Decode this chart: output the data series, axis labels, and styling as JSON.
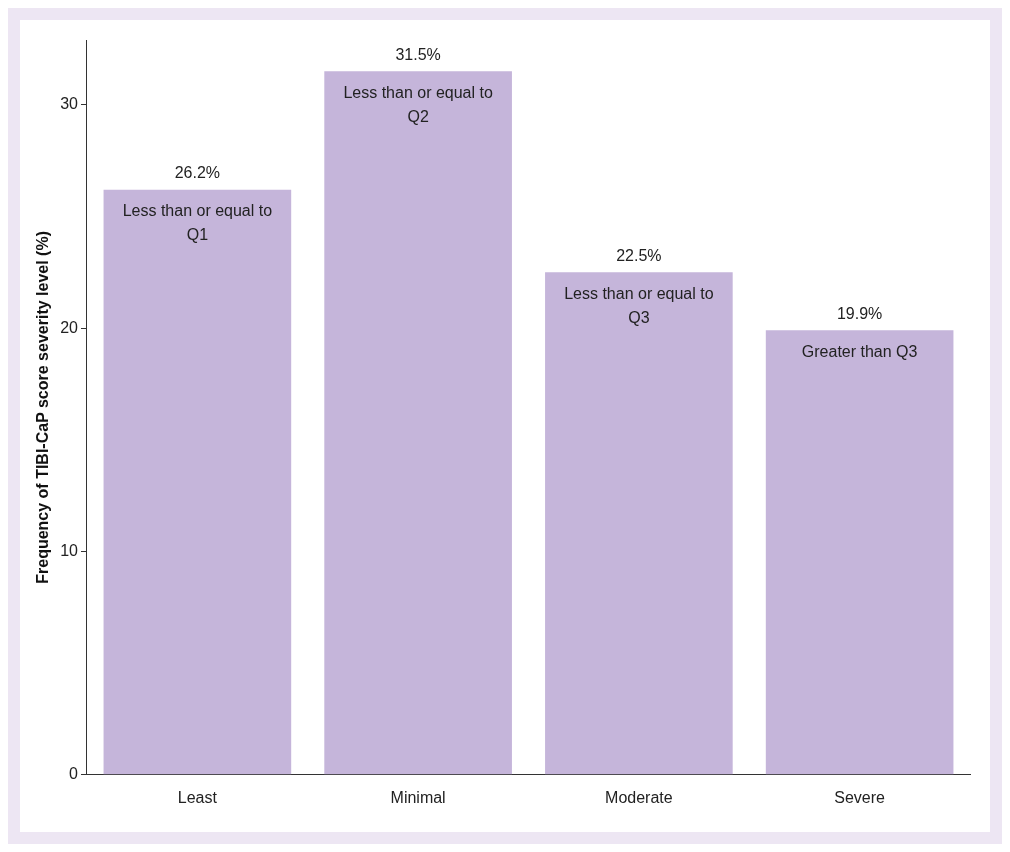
{
  "chart_data": {
    "type": "bar",
    "ylabel": "Frequency of TIBI-CaP score severity level (%)",
    "categories": [
      "Least",
      "Minimal",
      "Moderate",
      "Severe"
    ],
    "values": [
      26.2,
      31.5,
      22.5,
      19.9
    ],
    "value_labels": [
      "26.2%",
      "31.5%",
      "22.5%",
      "19.9%"
    ],
    "color": "#c5b5da",
    "ylim": [
      0,
      32.9
    ],
    "yticks": [
      0,
      10,
      20,
      30
    ],
    "grid": false,
    "legend": false,
    "annotations": [
      {
        "text": "Less than or equal to Q1",
        "x": "Least",
        "y": 26.2
      },
      {
        "text": "Less than or equal to Q2",
        "x": "Minimal",
        "y": 31.5
      },
      {
        "text": "Less than or equal to Q3",
        "x": "Moderate",
        "y": 22.5
      },
      {
        "text": "Greater than Q3",
        "x": "Severe",
        "y": 19.9
      }
    ]
  }
}
